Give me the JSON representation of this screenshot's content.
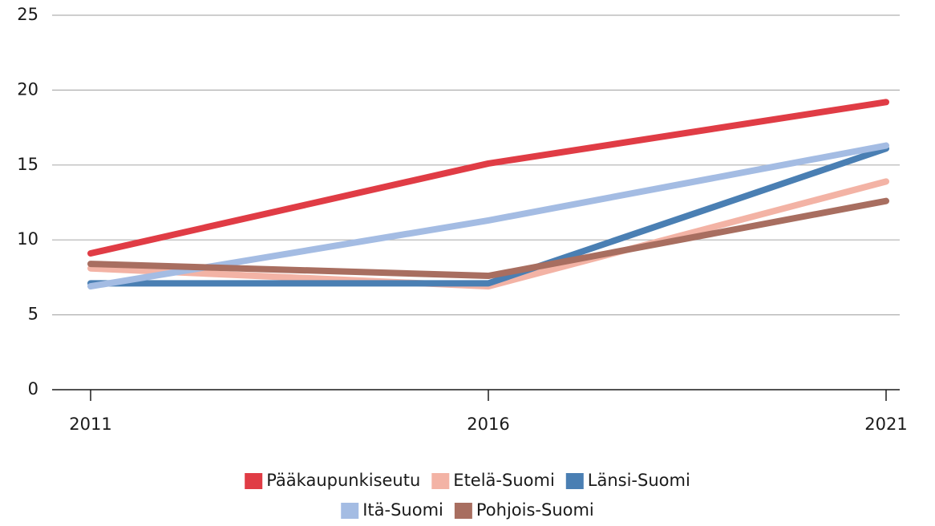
{
  "chart_data": {
    "type": "line",
    "categories": [
      "2011",
      "2016",
      "2021"
    ],
    "series": [
      {
        "name": "Pääkaupunkiseutu",
        "color": "#e03c45",
        "values": [
          9.1,
          15.1,
          19.2
        ]
      },
      {
        "name": "Etelä-Suomi",
        "color": "#f3b3a5",
        "values": [
          8.1,
          6.9,
          13.9
        ]
      },
      {
        "name": "Länsi-Suomi",
        "color": "#4a7fb3",
        "values": [
          7.1,
          7.1,
          16.1
        ]
      },
      {
        "name": "Itä-Suomi",
        "color": "#a4bce3",
        "values": [
          6.9,
          11.3,
          16.3
        ]
      },
      {
        "name": "Pohjois-Suomi",
        "color": "#a86e60",
        "values": [
          8.4,
          7.6,
          12.6
        ]
      }
    ],
    "ylim": [
      0,
      25
    ],
    "yticks": [
      0,
      5,
      10,
      15,
      20,
      25
    ],
    "grid": true
  }
}
